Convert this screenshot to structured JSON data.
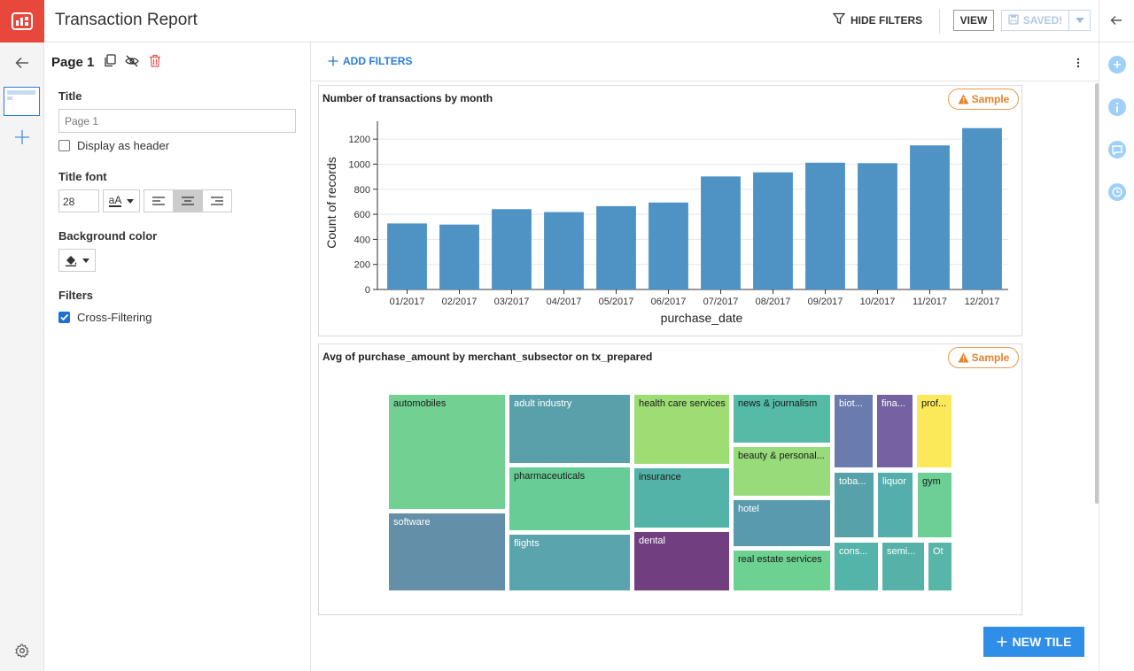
{
  "app": {
    "title": "Transaction Report"
  },
  "topbar": {
    "hide_filters": "HIDE FILTERS",
    "view": "VIEW",
    "saved": "SAVED!"
  },
  "panel": {
    "page_name": "Page 1",
    "title_label": "Title",
    "title_placeholder": "Page 1",
    "display_as_header": "Display as header",
    "title_font_label": "Title font",
    "font_size": "28",
    "font_case": "aA",
    "bg_color_label": "Background color",
    "filters_label": "Filters",
    "cross_filtering": "Cross-Filtering"
  },
  "main": {
    "add_filters": "ADD FILTERS",
    "new_tile": "NEW TILE",
    "sample_badge": "Sample"
  },
  "chart_data": [
    {
      "type": "bar",
      "title": "Number of transactions by month",
      "xlabel": "purchase_date",
      "ylabel": "Count of records",
      "categories": [
        "01/2017",
        "02/2017",
        "03/2017",
        "04/2017",
        "05/2017",
        "06/2017",
        "07/2017",
        "08/2017",
        "09/2017",
        "10/2017",
        "11/2017",
        "12/2017"
      ],
      "values": [
        527,
        518,
        641,
        618,
        665,
        694,
        902,
        935,
        1012,
        1008,
        1150,
        1288
      ],
      "ylim": [
        0,
        1300
      ],
      "yticks": [
        0,
        200,
        400,
        600,
        800,
        1000,
        1200
      ],
      "color": "#4f93c5",
      "grid": true
    },
    {
      "type": "heatmap",
      "title": "Avg of purchase_amount by merchant_subsector on tx_prepared",
      "cells": [
        {
          "label": "automobiles",
          "color": "#72d093"
        },
        {
          "label": "software",
          "color": "#638fa8"
        },
        {
          "label": "adult industry",
          "color": "#5aa0ab"
        },
        {
          "label": "pharmaceuticals",
          "color": "#67cc96"
        },
        {
          "label": "flights",
          "color": "#5aa4ad"
        },
        {
          "label": "health care services",
          "color": "#9ddd74"
        },
        {
          "label": "insurance",
          "color": "#54b3a8"
        },
        {
          "label": "dental",
          "color": "#713f7f"
        },
        {
          "label": "news & journalism",
          "color": "#56bba6"
        },
        {
          "label": "beauty & personal...",
          "color": "#98db7a"
        },
        {
          "label": "hotel",
          "color": "#5a9aae"
        },
        {
          "label": "real estate services",
          "color": "#6cd191"
        },
        {
          "label": "biot...",
          "color": "#6a7bae"
        },
        {
          "label": "fina...",
          "color": "#7462a2"
        },
        {
          "label": "prof...",
          "color": "#fbe95a"
        },
        {
          "label": "toba...",
          "color": "#57a2aa"
        },
        {
          "label": "liquor",
          "color": "#54afac"
        },
        {
          "label": "gym",
          "color": "#6dcf95"
        },
        {
          "label": "cons...",
          "color": "#55b4a9"
        },
        {
          "label": "semi...",
          "color": "#56b2a9"
        },
        {
          "label": "Ot",
          "color": "#58b6a9"
        }
      ]
    }
  ]
}
